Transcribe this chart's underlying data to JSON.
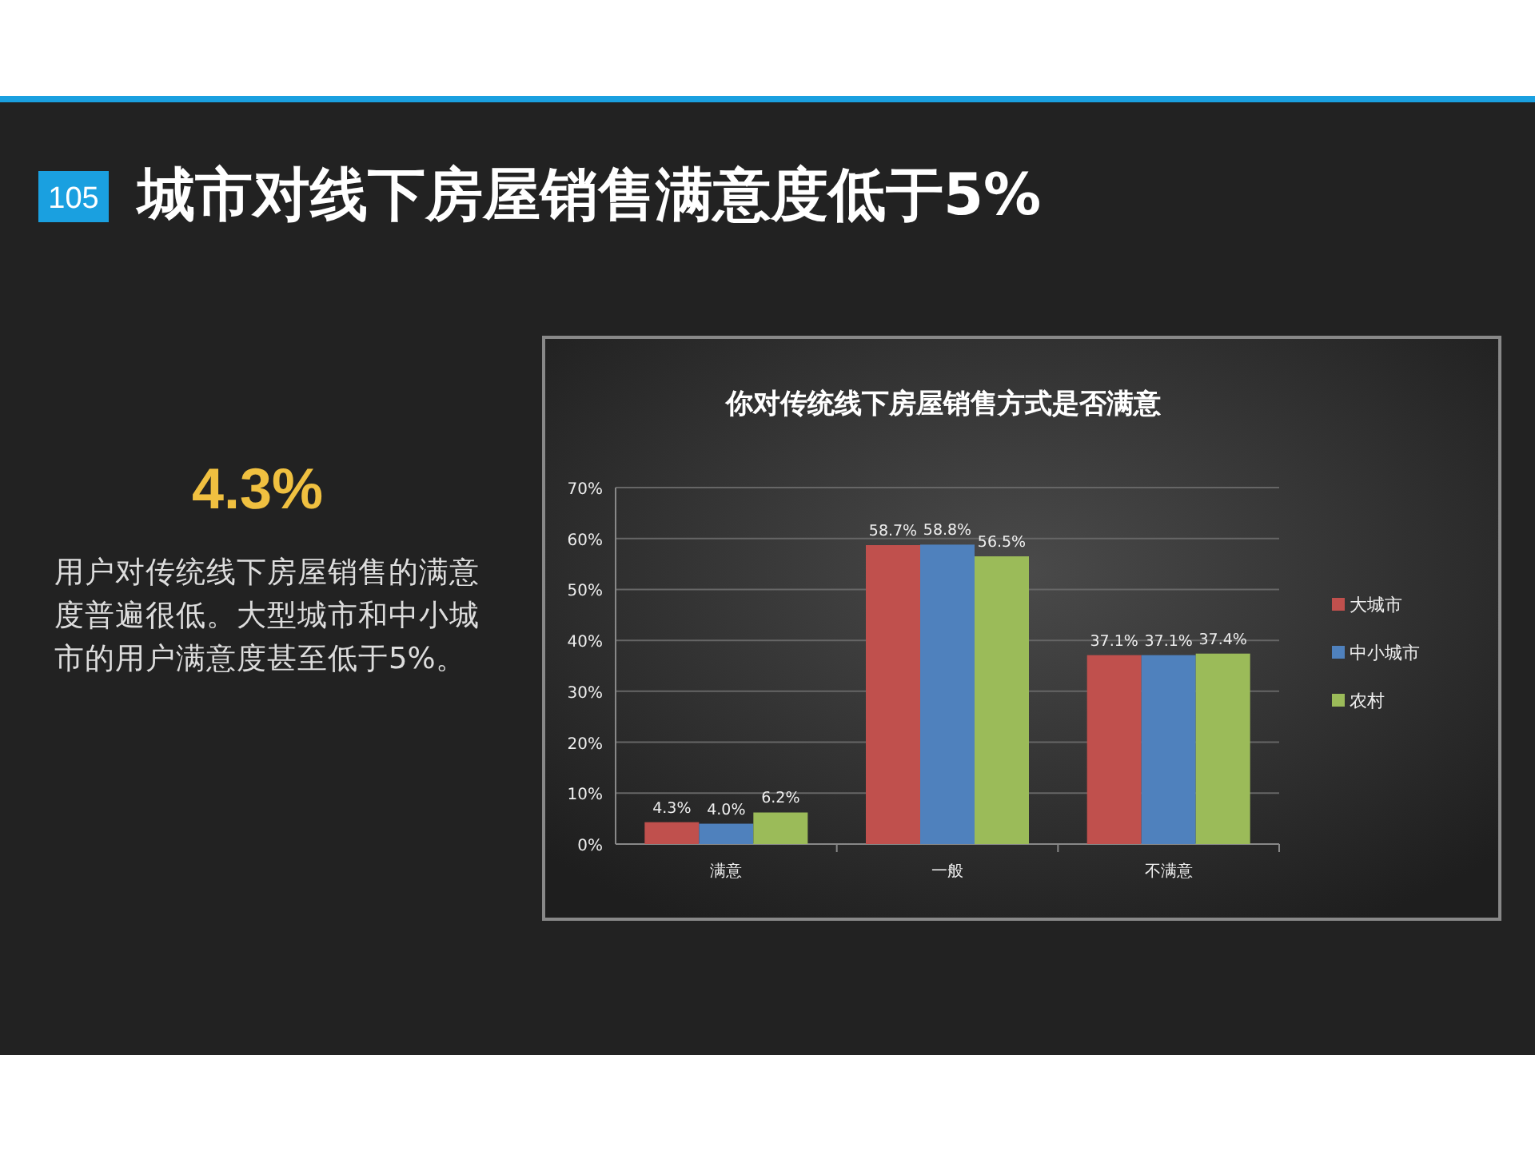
{
  "chart_data": {
    "type": "bar",
    "title": "城市对线下房屋销售满意度低于5%",
    "subtitle": "你对传统线下房屋销售方式是否满意",
    "categories": [
      "满意",
      "一般",
      "不满意"
    ],
    "series": [
      {
        "name": "大城市",
        "color": "#c0504d",
        "values": [
          4.3,
          58.7,
          37.1
        ],
        "value_labels": [
          "4.3%",
          "58.7%",
          "37.1%"
        ]
      },
      {
        "name": "中小城市",
        "color": "#4f81bd",
        "values": [
          4.0,
          58.8,
          37.1
        ],
        "value_labels": [
          "4.0%",
          "58.8%",
          "37.1%"
        ]
      },
      {
        "name": "农村",
        "color": "#9bbb59",
        "values": [
          6.2,
          56.5,
          37.4
        ],
        "value_labels": [
          "6.2%",
          "56.5%",
          "37.4%"
        ]
      }
    ],
    "ylim": [
      0,
      70
    ],
    "yticks": [
      {
        "value": 0,
        "label": "0%"
      },
      {
        "value": 10,
        "label": "10%"
      },
      {
        "value": 20,
        "label": "20%"
      },
      {
        "value": 30,
        "label": "30%"
      },
      {
        "value": 40,
        "label": "40%"
      },
      {
        "value": 50,
        "label": "50%"
      },
      {
        "value": 60,
        "label": "60%"
      },
      {
        "value": 70,
        "label": "70%"
      }
    ],
    "grid": "y",
    "legend": "right",
    "annotations": [
      "105",
      "4.3%",
      "用户对传统线下房屋销售的满意度普遍很低。大型城市和中小城市的用户满意度甚至低于5%。"
    ]
  }
}
